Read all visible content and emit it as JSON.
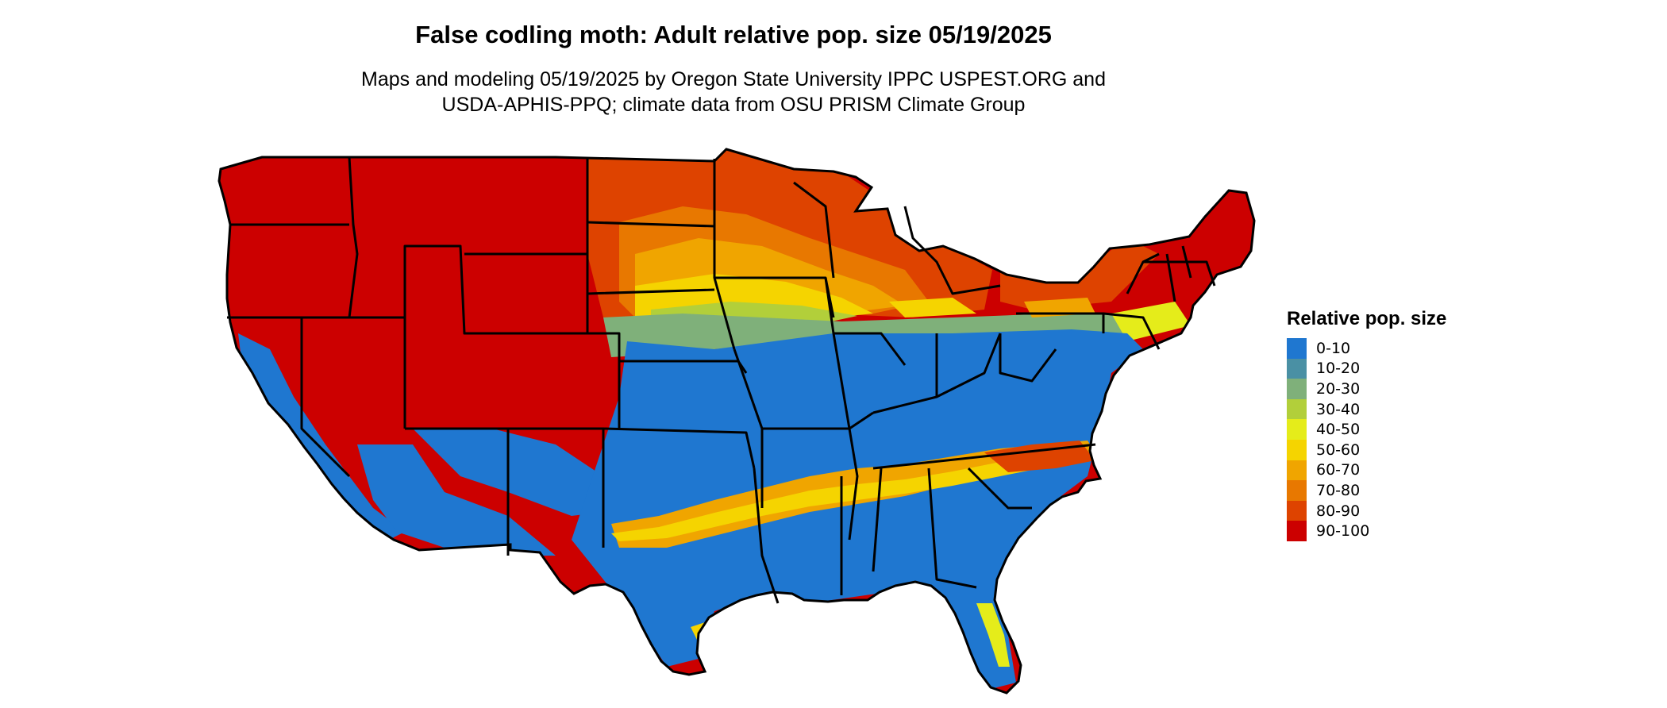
{
  "map": {
    "title": "False codling moth: Adult relative pop. size 05/19/2025",
    "subtitle_line1": "Maps and modeling 05/19/2025 by Oregon State University IPPC USPEST.ORG and",
    "subtitle_line2": "USDA-APHIS-PPQ; climate data from OSU PRISM Climate Group",
    "region": "Contiguous United States"
  },
  "legend": {
    "title": "Relative pop. size",
    "items": [
      {
        "label": "0-10",
        "color": "#1f77d0"
      },
      {
        "label": "10-20",
        "color": "#4a90a4"
      },
      {
        "label": "20-30",
        "color": "#7fb07a"
      },
      {
        "label": "30-40",
        "color": "#b2cf3a"
      },
      {
        "label": "40-50",
        "color": "#e5ec1a"
      },
      {
        "label": "50-60",
        "color": "#f5d400"
      },
      {
        "label": "60-70",
        "color": "#f0a500"
      },
      {
        "label": "70-80",
        "color": "#e87800"
      },
      {
        "label": "80-90",
        "color": "#de4300"
      },
      {
        "label": "90-100",
        "color": "#cc0000"
      }
    ]
  }
}
